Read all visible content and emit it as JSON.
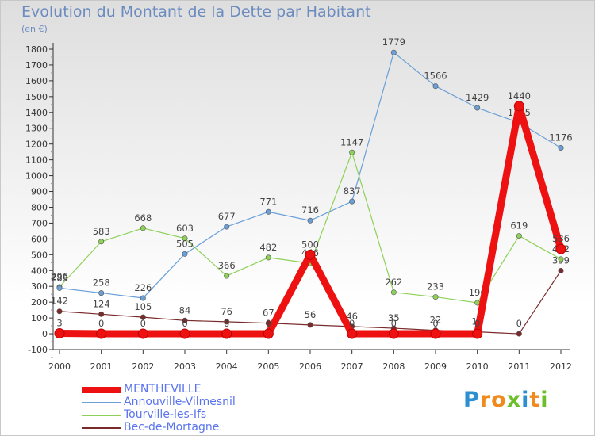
{
  "header": {
    "title": "Evolution du Montant de la Dette par Habitant",
    "subtitle": "(en €)"
  },
  "brand": {
    "letters": [
      "P",
      "r",
      "o",
      "x",
      "i",
      "t",
      "i"
    ],
    "colors": [
      "#2c8fd0",
      "#f08a1c",
      "#f08a1c",
      "#6cbf2a",
      "#2c8fd0",
      "#f08a1c",
      "#6cbf2a"
    ]
  },
  "chart_data": {
    "type": "line",
    "title": "Evolution du Montant de la Dette par Habitant",
    "ylabel": "(en €)",
    "xlabel": "",
    "ylim": [
      -100,
      1800
    ],
    "yticks": [
      -100,
      0,
      100,
      200,
      300,
      400,
      500,
      600,
      700,
      800,
      900,
      1000,
      1100,
      1200,
      1300,
      1400,
      1500,
      1600,
      1700,
      1800
    ],
    "x": [
      "2000",
      "2001",
      "2002",
      "2003",
      "2004",
      "2005",
      "2006",
      "2007",
      "2008",
      "2009",
      "2010",
      "2011",
      "2012"
    ],
    "grid": false,
    "legend": "bottom-left",
    "series": [
      {
        "name": "Bec-de-Mortagne",
        "color": "#7a2a2a",
        "values": [
          142,
          124,
          105,
          84,
          76,
          67,
          56,
          46,
          35,
          22,
          12,
          0,
          399
        ],
        "labels": [
          "142",
          "124",
          "105",
          "84",
          "76",
          "67",
          "56",
          "46",
          "35",
          "22",
          "12",
          "0",
          "399"
        ]
      },
      {
        "name": "Tourville-les-Ifs",
        "color": "#8ed158",
        "values": [
          296,
          583,
          668,
          603,
          366,
          482,
          446,
          1147,
          262,
          233,
          196,
          619,
          472
        ],
        "labels": [
          "296",
          "583",
          "668",
          "603",
          "366",
          "482",
          "446",
          "1147",
          "262",
          "233",
          "196",
          "619",
          "472"
        ]
      },
      {
        "name": "Annouville-Vilmesnil",
        "color": "#6a9fd8",
        "values": [
          289,
          258,
          226,
          505,
          677,
          771,
          716,
          837,
          1779,
          1566,
          1429,
          1335,
          1176
        ],
        "labels": [
          "289",
          "258",
          "226",
          "505",
          "677",
          "771",
          "716",
          "837",
          "1779",
          "1566",
          "1429",
          "1335",
          "1176"
        ]
      },
      {
        "name": "MENTHEVILLE",
        "color": "#ee1111",
        "values": [
          3,
          0,
          0,
          0,
          0,
          0,
          500,
          0,
          0,
          0,
          0,
          1440,
          536
        ],
        "labels": [
          "3",
          "0",
          "0",
          "0",
          "0",
          "0",
          "500",
          "0",
          "0",
          "0",
          "0",
          "1440",
          "536"
        ]
      }
    ],
    "legend_order": [
      "MENTHEVILLE",
      "Annouville-Vilmesnil",
      "Tourville-les-Ifs",
      "Bec-de-Mortagne"
    ]
  }
}
